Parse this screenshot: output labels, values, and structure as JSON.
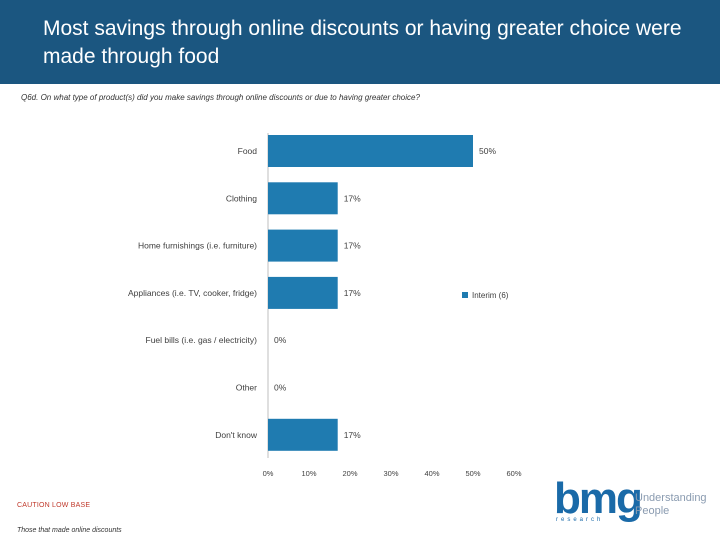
{
  "header": {
    "title": "Most savings through online discounts or having greater choice were made through food"
  },
  "question": "Q6d. On what type of product(s) did you make savings through online discounts or due to having greater choice?",
  "footer": {
    "caution": "CAUTION LOW  BASE",
    "base": "Those that made online discounts"
  },
  "logo": {
    "mark": "bmg",
    "research": "research",
    "tagline": "Understanding People"
  },
  "colors": {
    "header": "#1b5680",
    "bar": "#1f7bb0",
    "caution": "#c0392b"
  },
  "chart_data": {
    "type": "bar",
    "orientation": "horizontal",
    "categories": [
      "Food",
      "Clothing",
      "Home furnishings (i.e. furniture)",
      "Appliances (i.e. TV, cooker, fridge)",
      "Fuel bills (i.e. gas / electricity)",
      "Other",
      "Don't know"
    ],
    "series": [
      {
        "name": "Interim (6)",
        "values": [
          50,
          17,
          17,
          17,
          0,
          0,
          17
        ]
      }
    ],
    "value_labels": [
      "50%",
      "17%",
      "17%",
      "17%",
      "0%",
      "0%",
      "17%"
    ],
    "xlim": [
      0,
      60
    ],
    "xticks": [
      "0%",
      "10%",
      "20%",
      "30%",
      "40%",
      "50%",
      "60%"
    ],
    "legend_position": "right",
    "grid": false
  }
}
